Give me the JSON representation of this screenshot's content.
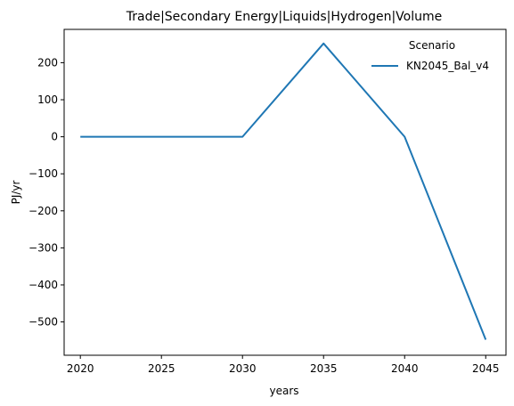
{
  "chart_data": {
    "type": "line",
    "title": "Trade|Secondary Energy|Liquids|Hydrogen|Volume",
    "xlabel": "years",
    "ylabel": "PJ/yr",
    "x": [
      2020,
      2025,
      2030,
      2035,
      2040,
      2045
    ],
    "xticks": [
      "2020",
      "2025",
      "2030",
      "2035",
      "2040",
      "2045"
    ],
    "yticks": [
      "200",
      "100",
      "0",
      "−100",
      "−200",
      "−300",
      "−400",
      "−500"
    ],
    "ytick_values": [
      200,
      100,
      0,
      -100,
      -200,
      -300,
      -400,
      -500
    ],
    "xlim": [
      2019.0,
      2046.25
    ],
    "ylim": [
      -590,
      290
    ],
    "grid": false,
    "legend": {
      "title": "Scenario",
      "placement": "top-right"
    },
    "series": [
      {
        "name": "KN2045_Bal_v4",
        "color": "#1f77b4",
        "values": [
          0,
          0,
          0,
          252,
          0,
          -548
        ]
      }
    ]
  }
}
